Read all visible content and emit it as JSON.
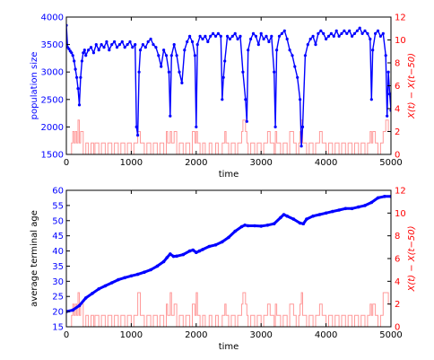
{
  "chart_data": [
    {
      "type": "line",
      "xlabel": "time",
      "ylabel": "population size",
      "y2label": "X(t) − X(t−50)",
      "xlim": [
        0,
        5000
      ],
      "ylim": [
        1500,
        4000
      ],
      "y2lim": [
        0,
        12
      ],
      "xticks": [
        0,
        1000,
        2000,
        3000,
        4000,
        5000
      ],
      "yticks": [
        1500,
        2000,
        2500,
        3000,
        3500,
        4000
      ],
      "y2ticks": [
        0,
        2,
        4,
        6,
        8,
        10,
        12
      ],
      "grid": false,
      "colors": {
        "primary": "#0000ff",
        "secondary": "#ff0000",
        "secondary_line": "#ff9a9a"
      },
      "series": [
        {
          "axis": "left",
          "marker": "dot",
          "x": [
            0,
            20,
            40,
            60,
            80,
            100,
            120,
            140,
            160,
            180,
            200,
            220,
            240,
            260,
            280,
            300,
            340,
            380,
            420,
            460,
            500,
            540,
            580,
            620,
            660,
            700,
            740,
            780,
            820,
            860,
            900,
            940,
            980,
            1020,
            1060,
            1080,
            1100,
            1120,
            1140,
            1180,
            1220,
            1260,
            1300,
            1340,
            1380,
            1420,
            1460,
            1500,
            1540,
            1580,
            1600,
            1620,
            1660,
            1700,
            1740,
            1780,
            1820,
            1860,
            1900,
            1940,
            1980,
            2000,
            2020,
            2060,
            2100,
            2140,
            2180,
            2220,
            2260,
            2300,
            2340,
            2380,
            2400,
            2420,
            2440,
            2480,
            2520,
            2560,
            2600,
            2640,
            2680,
            2720,
            2760,
            2780,
            2800,
            2840,
            2880,
            2920,
            2960,
            3000,
            3040,
            3080,
            3120,
            3160,
            3200,
            3220,
            3240,
            3280,
            3320,
            3360,
            3400,
            3440,
            3480,
            3520,
            3560,
            3600,
            3620,
            3640,
            3680,
            3720,
            3760,
            3800,
            3840,
            3880,
            3920,
            3960,
            4000,
            4040,
            4080,
            4120,
            4160,
            4200,
            4240,
            4280,
            4320,
            4360,
            4400,
            4440,
            4480,
            4520,
            4560,
            4600,
            4640,
            4680,
            4700,
            4720,
            4760,
            4800,
            4840,
            4880,
            4920,
            4940,
            4960,
            4980,
            5000
          ],
          "y": [
            3850,
            3450,
            3420,
            3380,
            3350,
            3300,
            3200,
            3050,
            2900,
            2700,
            2400,
            2900,
            3200,
            3350,
            3400,
            3300,
            3400,
            3450,
            3350,
            3500,
            3400,
            3500,
            3450,
            3550,
            3400,
            3500,
            3550,
            3450,
            3500,
            3550,
            3450,
            3500,
            3550,
            3450,
            3500,
            2000,
            1850,
            3000,
            3400,
            3500,
            3450,
            3550,
            3600,
            3500,
            3450,
            3300,
            3100,
            3400,
            3300,
            3000,
            2200,
            3300,
            3500,
            3300,
            3000,
            2800,
            3400,
            3550,
            3650,
            3550,
            3300,
            2000,
            3500,
            3650,
            3600,
            3650,
            3550,
            3650,
            3700,
            3650,
            3700,
            3650,
            2500,
            2900,
            3200,
            3650,
            3600,
            3650,
            3700,
            3600,
            3650,
            3000,
            2500,
            2100,
            3400,
            3600,
            3700,
            3650,
            3500,
            3700,
            3600,
            3650,
            3550,
            3650,
            3000,
            2000,
            3400,
            3650,
            3700,
            3750,
            3600,
            3400,
            3300,
            3100,
            2900,
            2500,
            1650,
            2000,
            3300,
            3500,
            3600,
            3650,
            3500,
            3700,
            3750,
            3700,
            3600,
            3650,
            3700,
            3650,
            3750,
            3650,
            3700,
            3750,
            3700,
            3750,
            3650,
            3700,
            3750,
            3800,
            3700,
            3750,
            3700,
            3600,
            2500,
            3400,
            3700,
            3750,
            3650,
            3700,
            3300,
            2200,
            3000,
            2600,
            2300
          ]
        },
        {
          "axis": "right",
          "type": "step",
          "x": [
            0,
            80,
            100,
            120,
            140,
            160,
            180,
            200,
            220,
            260,
            300,
            340,
            380,
            420,
            440,
            500,
            540,
            600,
            640,
            700,
            740,
            800,
            840,
            900,
            940,
            1000,
            1040,
            1080,
            1100,
            1140,
            1200,
            1240,
            1300,
            1340,
            1400,
            1440,
            1500,
            1540,
            1560,
            1600,
            1620,
            1660,
            1700,
            1740,
            1800,
            1840,
            1900,
            1940,
            1980,
            2000,
            2020,
            2060,
            2100,
            2140,
            2200,
            2240,
            2300,
            2340,
            2400,
            2440,
            2460,
            2500,
            2540,
            2600,
            2640,
            2700,
            2720,
            2760,
            2780,
            2800,
            2840,
            2900,
            2940,
            3000,
            3040,
            3100,
            3140,
            3200,
            3220,
            3240,
            3300,
            3340,
            3400,
            3440,
            3500,
            3540,
            3580,
            3600,
            3620,
            3640,
            3700,
            3740,
            3800,
            3840,
            3900,
            3940,
            4000,
            4040,
            4100,
            4140,
            4200,
            4240,
            4300,
            4340,
            4400,
            4440,
            4500,
            4540,
            4600,
            4640,
            4680,
            4700,
            4720,
            4760,
            4800,
            4840,
            4880,
            4920,
            4960,
            5000
          ],
          "y": [
            0,
            1,
            2,
            1,
            2,
            1,
            3,
            1,
            2,
            0,
            1,
            0,
            1,
            0,
            1,
            0,
            1,
            0,
            1,
            0,
            1,
            0,
            1,
            0,
            1,
            0,
            1,
            1,
            2,
            1,
            0,
            1,
            0,
            1,
            0,
            1,
            0,
            2,
            1,
            2,
            1,
            2,
            0,
            1,
            0,
            1,
            0,
            2,
            1,
            2,
            1,
            0,
            1,
            0,
            1,
            0,
            1,
            0,
            1,
            2,
            1,
            0,
            1,
            0,
            1,
            2,
            3,
            2,
            1,
            0,
            1,
            0,
            1,
            0,
            1,
            2,
            1,
            0,
            2,
            1,
            0,
            1,
            0,
            2,
            1,
            0,
            1,
            2,
            3,
            1,
            0,
            1,
            0,
            1,
            2,
            1,
            0,
            1,
            0,
            1,
            0,
            1,
            0,
            1,
            0,
            1,
            0,
            1,
            0,
            1,
            2,
            1,
            2,
            1,
            0,
            1,
            2,
            3,
            2,
            2
          ]
        }
      ]
    },
    {
      "type": "line",
      "xlabel": "time",
      "ylabel": "average terminal age",
      "y2label": "X(t) − X(t−50)",
      "xlim": [
        0,
        5000
      ],
      "ylim": [
        15,
        60
      ],
      "y2lim": [
        0,
        12
      ],
      "xticks": [
        0,
        1000,
        2000,
        3000,
        4000,
        5000
      ],
      "yticks": [
        15,
        20,
        25,
        30,
        35,
        40,
        45,
        50,
        55,
        60
      ],
      "y2ticks": [
        0,
        2,
        4,
        6,
        8,
        10,
        12
      ],
      "grid": false,
      "colors": {
        "primary": "#0000ff",
        "secondary": "#ff0000",
        "secondary_line": "#ff9a9a"
      },
      "series": [
        {
          "axis": "left",
          "marker": "dot",
          "x": [
            0,
            100,
            200,
            300,
            400,
            500,
            600,
            700,
            800,
            900,
            1000,
            1100,
            1200,
            1300,
            1400,
            1500,
            1550,
            1600,
            1650,
            1700,
            1800,
            1900,
            1950,
            2000,
            2050,
            2100,
            2200,
            2300,
            2400,
            2500,
            2600,
            2700,
            2750,
            2800,
            2900,
            3000,
            3100,
            3200,
            3300,
            3350,
            3400,
            3500,
            3600,
            3650,
            3700,
            3800,
            3900,
            4000,
            4100,
            4200,
            4300,
            4400,
            4500,
            4600,
            4700,
            4800,
            4900,
            5000
          ],
          "y": [
            20,
            20.5,
            22,
            24.5,
            26,
            27.5,
            28.5,
            29.5,
            30.5,
            31.2,
            31.8,
            32.3,
            33,
            33.8,
            35,
            36.5,
            37.8,
            39,
            38.2,
            38.3,
            38.8,
            40,
            40.3,
            39.5,
            40,
            40.5,
            41.5,
            42,
            43,
            44.5,
            46.5,
            48,
            48.5,
            48.3,
            48.3,
            48.2,
            48.5,
            49,
            51,
            52,
            51.5,
            50.5,
            49.2,
            49,
            50.5,
            51.5,
            52,
            52.5,
            53,
            53.5,
            54,
            54,
            54.5,
            55,
            56,
            57.5,
            58,
            58
          ]
        },
        {
          "axis": "right",
          "type": "step",
          "x": [
            0,
            80,
            100,
            120,
            140,
            160,
            180,
            200,
            220,
            260,
            300,
            340,
            380,
            420,
            440,
            500,
            540,
            600,
            640,
            700,
            740,
            800,
            840,
            900,
            940,
            1000,
            1040,
            1080,
            1100,
            1140,
            1200,
            1240,
            1300,
            1340,
            1400,
            1440,
            1500,
            1540,
            1560,
            1600,
            1620,
            1660,
            1700,
            1740,
            1800,
            1840,
            1900,
            1940,
            1980,
            2000,
            2020,
            2060,
            2100,
            2140,
            2200,
            2240,
            2300,
            2340,
            2400,
            2440,
            2460,
            2500,
            2540,
            2600,
            2640,
            2700,
            2720,
            2760,
            2780,
            2800,
            2840,
            2900,
            2940,
            3000,
            3040,
            3100,
            3140,
            3200,
            3220,
            3240,
            3300,
            3340,
            3400,
            3440,
            3500,
            3540,
            3580,
            3600,
            3620,
            3640,
            3700,
            3740,
            3800,
            3840,
            3900,
            3940,
            4000,
            4040,
            4100,
            4140,
            4200,
            4240,
            4300,
            4340,
            4400,
            4440,
            4500,
            4540,
            4600,
            4640,
            4680,
            4700,
            4720,
            4760,
            4800,
            4840,
            4880,
            4920,
            4960,
            5000
          ],
          "y": [
            0,
            1,
            2,
            1,
            2,
            1,
            3,
            1,
            2,
            0,
            1,
            0,
            1,
            0,
            1,
            0,
            1,
            0,
            1,
            0,
            1,
            0,
            1,
            0,
            1,
            0,
            1,
            1,
            3,
            1,
            0,
            1,
            0,
            1,
            0,
            1,
            0,
            2,
            1,
            3,
            1,
            2,
            0,
            1,
            0,
            1,
            0,
            2,
            1,
            3,
            1,
            0,
            1,
            0,
            1,
            0,
            1,
            0,
            1,
            2,
            1,
            0,
            1,
            0,
            1,
            2,
            3,
            2,
            1,
            0,
            1,
            0,
            1,
            0,
            1,
            2,
            1,
            0,
            2,
            1,
            0,
            1,
            0,
            2,
            1,
            0,
            1,
            2,
            3,
            1,
            0,
            1,
            0,
            1,
            2,
            1,
            0,
            1,
            0,
            1,
            0,
            1,
            0,
            1,
            0,
            1,
            0,
            1,
            0,
            1,
            2,
            1,
            2,
            1,
            0,
            1,
            3,
            3,
            2,
            2
          ]
        }
      ]
    }
  ]
}
